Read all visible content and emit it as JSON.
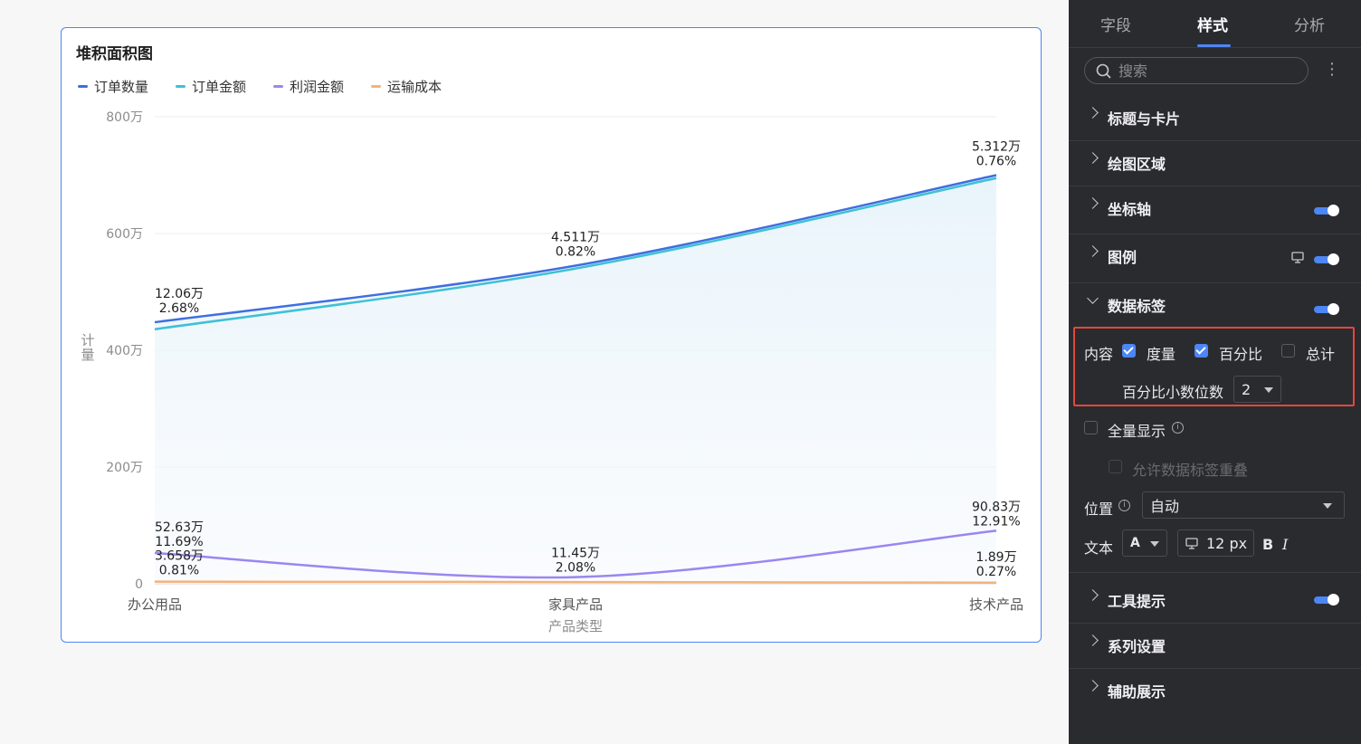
{
  "chart": {
    "title": "堆积面积图",
    "legend": [
      {
        "label": "订单数量",
        "color": "#3e6fe0"
      },
      {
        "label": "订单金额",
        "color": "#3fc0d6"
      },
      {
        "label": "利润金额",
        "color": "#9b86f0"
      },
      {
        "label": "运输成本",
        "color": "#f3b37a"
      }
    ]
  },
  "chart_data": {
    "type": "area",
    "title": "堆积面积图",
    "xlabel": "产品类型",
    "ylabel": "计量",
    "categories": [
      "办公用品",
      "家具产品",
      "技术产品"
    ],
    "ylim": [
      0,
      8000000
    ],
    "yticks": [
      "0",
      "200万",
      "400万",
      "600万",
      "800万"
    ],
    "series": [
      {
        "name": "订单数量",
        "color": "#3e6fe0",
        "values": [
          4480000,
          5450000,
          7000000
        ],
        "labels": [
          "12.06万",
          "4.511万",
          "5.312万"
        ],
        "pct": [
          "2.68%",
          "0.82%",
          "0.76%"
        ]
      },
      {
        "name": "订单金额",
        "color": "#3fc0d6",
        "values": [
          4360000,
          5400000,
          6950000
        ],
        "labels": [],
        "pct": []
      },
      {
        "name": "利润金额",
        "color": "#9b86f0",
        "values": [
          526300,
          114500,
          908300
        ],
        "labels": [
          "52.63万",
          "11.45万",
          "90.83万"
        ],
        "pct": [
          "11.69%",
          "2.08%",
          "12.91%"
        ]
      },
      {
        "name": "运输成本",
        "color": "#f3b37a",
        "values": [
          36580,
          30000,
          18900
        ],
        "labels": [
          "3.658万",
          "",
          "1.89万"
        ],
        "pct": [
          "0.81%",
          "",
          "0.27%"
        ]
      }
    ],
    "grid": true,
    "legend_position": "top-left"
  },
  "panel": {
    "tabs": [
      "字段",
      "样式",
      "分析"
    ],
    "active_tab": "样式",
    "search_placeholder": "搜索",
    "more": "⋮",
    "sections": {
      "title_card": "标题与卡片",
      "plot_area": "绘图区域",
      "axis": "坐标轴",
      "legend": "图例",
      "data_label": "数据标签",
      "tooltip": "工具提示",
      "series_settings": "系列设置",
      "aux_display": "辅助展示"
    },
    "data_label": {
      "content_label": "内容",
      "measure": "度量",
      "percent": "百分比",
      "total": "总计",
      "decimals_label": "百分比小数位数",
      "decimals_value": "2",
      "show_all": "全量显示",
      "allow_overlap": "允许数据标签重叠",
      "position_label": "位置",
      "position_value": "自动",
      "text_label": "文本",
      "font_color_letter": "A",
      "font_size": "12 px",
      "bold": "B",
      "italic": "I"
    }
  }
}
